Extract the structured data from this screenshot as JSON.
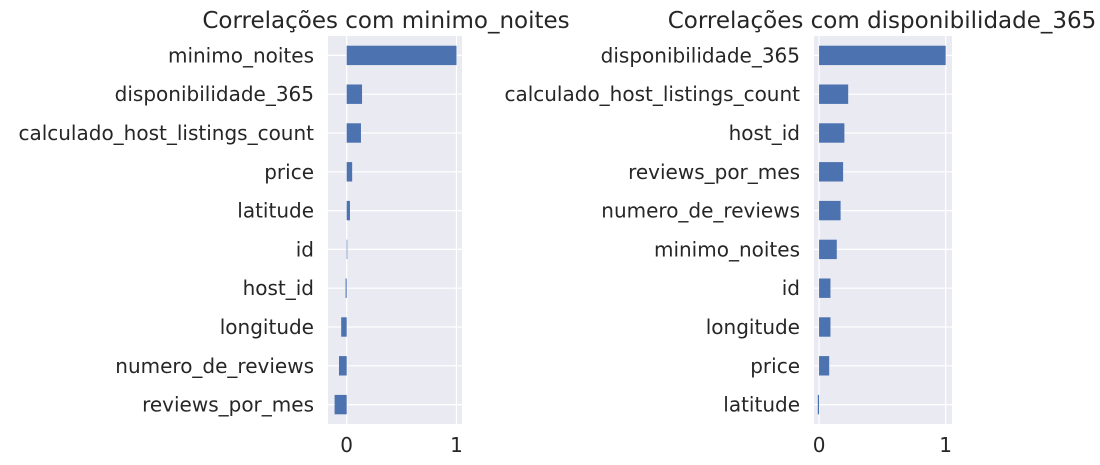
{
  "colors": {
    "background": "#eaeaf2",
    "bar": "#4c72b0",
    "grid": "#ffffff",
    "text": "#262626"
  },
  "chart_data": [
    {
      "type": "bar",
      "orientation": "horizontal",
      "title": "Correlações com minimo_noites",
      "xlabel": "",
      "ylabel": "",
      "categories": [
        "minimo_noites",
        "disponibilidade_365",
        "calculado_host_listings_count",
        "price",
        "latitude",
        "id",
        "host_id",
        "longitude",
        "numero_de_reviews",
        "reviews_por_mes"
      ],
      "values": [
        1.0,
        0.14,
        0.13,
        0.05,
        0.03,
        0.0,
        -0.01,
        -0.05,
        -0.07,
        -0.11
      ],
      "xlim": [
        -0.17,
        1.05
      ],
      "xticks": [
        0,
        1
      ],
      "xtick_labels": [
        "0",
        "1"
      ],
      "grid": true
    },
    {
      "type": "bar",
      "orientation": "horizontal",
      "title": "Correlações com disponibilidade_365",
      "xlabel": "",
      "ylabel": "",
      "categories": [
        "disponibilidade_365",
        "calculado_host_listings_count",
        "host_id",
        "reviews_por_mes",
        "numero_de_reviews",
        "minimo_noites",
        "id",
        "longitude",
        "price",
        "latitude"
      ],
      "values": [
        1.0,
        0.23,
        0.2,
        0.19,
        0.17,
        0.14,
        0.09,
        0.09,
        0.08,
        -0.01
      ],
      "xlim": [
        -0.04,
        1.05
      ],
      "xticks": [
        0,
        1
      ],
      "xtick_labels": [
        "0",
        "1"
      ],
      "grid": true
    }
  ]
}
